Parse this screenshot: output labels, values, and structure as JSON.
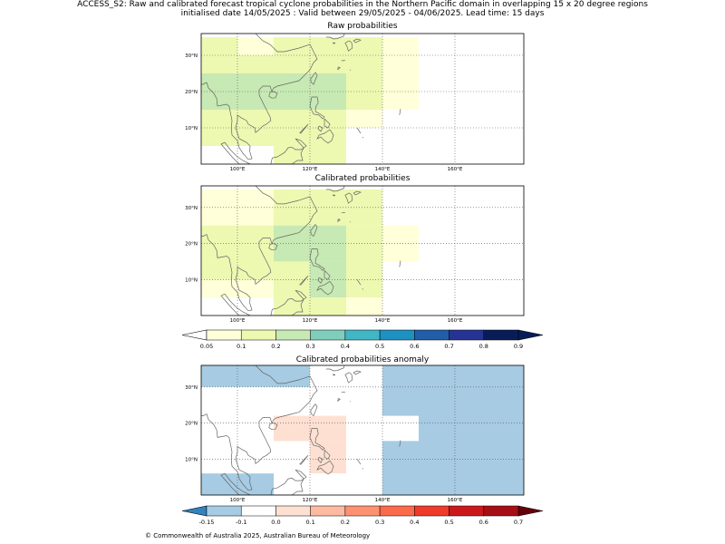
{
  "header": {
    "line1": "ACCESS_S2: Raw and calibrated forecast tropical cyclone probabilities in the Northern Pacific domain in overlapping 15 x 20 degree regions",
    "line2": "initialised date 14/05/2025 :  Valid between 29/05/2025 - 04/06/2025. Lead time: 15 days"
  },
  "footer": "© Commonwealth of Australia 2025, Australian Bureau of Meteorology",
  "chart_data": [
    {
      "type": "heatmap",
      "title": "Raw probabilities",
      "lon_ticks": [
        "100°E",
        "120°E",
        "140°E",
        "160°E"
      ],
      "lat_ticks": [
        "10°N",
        "20°N",
        "30°N"
      ],
      "cells": [
        {
          "lon": [
            90,
            100
          ],
          "lat": [
            30,
            35
          ],
          "value": 0.15
        },
        {
          "lon": [
            100,
            110
          ],
          "lat": [
            30,
            35
          ],
          "value": 0.07
        },
        {
          "lon": [
            110,
            140
          ],
          "lat": [
            30,
            35
          ],
          "value": 0.15
        },
        {
          "lon": [
            140,
            150
          ],
          "lat": [
            30,
            35
          ],
          "value": 0.07
        },
        {
          "lon": [
            90,
            140
          ],
          "lat": [
            25,
            30
          ],
          "value": 0.15
        },
        {
          "lon": [
            140,
            150
          ],
          "lat": [
            25,
            30
          ],
          "value": 0.07
        },
        {
          "lon": [
            90,
            130
          ],
          "lat": [
            15,
            25
          ],
          "value": 0.25
        },
        {
          "lon": [
            130,
            140
          ],
          "lat": [
            15,
            25
          ],
          "value": 0.15
        },
        {
          "lon": [
            140,
            150
          ],
          "lat": [
            15,
            25
          ],
          "value": 0.07
        },
        {
          "lon": [
            90,
            130
          ],
          "lat": [
            10,
            15
          ],
          "value": 0.15
        },
        {
          "lon": [
            130,
            140
          ],
          "lat": [
            10,
            15
          ],
          "value": 0.07
        },
        {
          "lon": [
            90,
            130
          ],
          "lat": [
            5,
            10
          ],
          "value": 0.15
        },
        {
          "lon": [
            110,
            130
          ],
          "lat": [
            0,
            5
          ],
          "value": 0.15
        }
      ]
    },
    {
      "type": "heatmap",
      "title": "Calibrated probabilities",
      "lon_ticks": [
        "100°E",
        "120°E",
        "140°E",
        "160°E"
      ],
      "lat_ticks": [
        "10°N",
        "20°N",
        "30°N"
      ],
      "colorbar": {
        "ticks": [
          "0.05",
          "0.1",
          "0.2",
          "0.3",
          "0.4",
          "0.5",
          "0.6",
          "0.7",
          "0.8",
          "0.9"
        ]
      },
      "cells": [
        {
          "lon": [
            90,
            110
          ],
          "lat": [
            25,
            35
          ],
          "value": 0.07
        },
        {
          "lon": [
            110,
            140
          ],
          "lat": [
            25,
            35
          ],
          "value": 0.15
        },
        {
          "lon": [
            90,
            110
          ],
          "lat": [
            5,
            25
          ],
          "value": 0.15
        },
        {
          "lon": [
            110,
            130
          ],
          "lat": [
            15,
            25
          ],
          "value": 0.25
        },
        {
          "lon": [
            130,
            140
          ],
          "lat": [
            5,
            25
          ],
          "value": 0.15
        },
        {
          "lon": [
            140,
            150
          ],
          "lat": [
            15,
            25
          ],
          "value": 0.07
        },
        {
          "lon": [
            110,
            120
          ],
          "lat": [
            5,
            15
          ],
          "value": 0.15
        },
        {
          "lon": [
            120,
            130
          ],
          "lat": [
            5,
            15
          ],
          "value": 0.25
        },
        {
          "lon": [
            90,
            110
          ],
          "lat": [
            5,
            10
          ],
          "value": 0.07
        },
        {
          "lon": [
            110,
            130
          ],
          "lat": [
            0,
            5
          ],
          "value": 0.15
        },
        {
          "lon": [
            130,
            140
          ],
          "lat": [
            0,
            5
          ],
          "value": 0.07
        }
      ]
    },
    {
      "type": "heatmap",
      "title": "Calibrated probabilities anomaly",
      "lon_ticks": [
        "100°E",
        "120°E",
        "140°E",
        "160°E"
      ],
      "lat_ticks": [
        "10°N",
        "20°N",
        "30°N"
      ],
      "colorbar": {
        "ticks": [
          "-0.15",
          "-0.1",
          "0.0",
          "0.1",
          "0.2",
          "0.3",
          "0.4",
          "0.5",
          "0.6",
          "0.7"
        ]
      },
      "cells": [
        {
          "lon": [
            90,
            120
          ],
          "lat": [
            30,
            36
          ],
          "value": -0.15
        },
        {
          "lon": [
            120,
            140
          ],
          "lat": [
            30,
            36
          ],
          "value": -0.1
        },
        {
          "lon": [
            140,
            179
          ],
          "lat": [
            0,
            36
          ],
          "value": -0.15
        },
        {
          "lon": [
            90,
            110
          ],
          "lat": [
            20,
            30
          ],
          "value": -0.1
        },
        {
          "lon": [
            140,
            150
          ],
          "lat": [
            15,
            22
          ],
          "value": -0.1
        },
        {
          "lon": [
            110,
            130
          ],
          "lat": [
            15,
            22
          ],
          "value": 0.05
        },
        {
          "lon": [
            120,
            130
          ],
          "lat": [
            6,
            15
          ],
          "value": 0.05
        },
        {
          "lon": [
            90,
            100
          ],
          "lat": [
            6,
            15
          ],
          "value": -0.1
        },
        {
          "lon": [
            90,
            110
          ],
          "lat": [
            0,
            6
          ],
          "value": -0.15
        },
        {
          "lon": [
            130,
            140
          ],
          "lat": [
            0,
            6
          ],
          "value": -0.1
        }
      ]
    }
  ]
}
